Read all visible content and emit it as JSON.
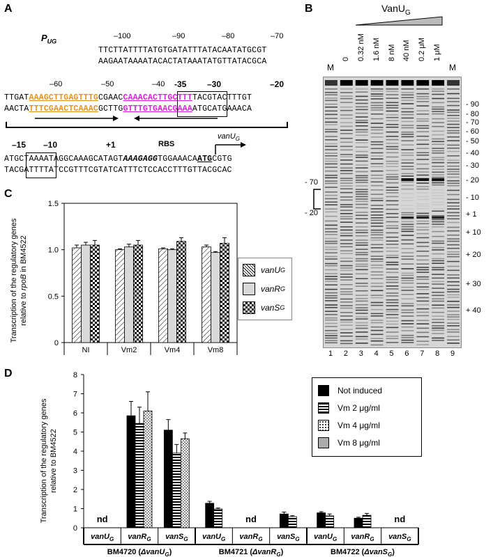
{
  "panelA": {
    "letter": "A",
    "promoter_label": "P",
    "promoter_sub": "UG",
    "nums_row1": [
      "–100",
      "–90",
      "–80",
      "–70"
    ],
    "seq1_top": "TTCTTATTTTATGTGATATTTATACAATATGCGT",
    "seq1_bot": "AAGAATAAAATACACTATAAATATGTTATACGCA",
    "nums_row2": [
      "–60",
      "–50",
      "–40",
      "–20"
    ],
    "nums_row2_bold": [
      "-35",
      "–30"
    ],
    "seq2_top": {
      "a": "TTGAT",
      "b": "AAAGCTTGAGTTTG",
      "c": "CGAAC",
      "d": "CAAACACTTGCTTT",
      "e": "TACGTACTTTGT"
    },
    "seq2_bot": {
      "a": "AACTA",
      "b": "TTTCGAACTCAAAC",
      "c": "GCTTG",
      "d": "GTTTGTGAACGAAA",
      "e": "ATGCATGAAACA"
    },
    "nums_row3_bold": [
      "–15",
      "–10",
      "+1",
      "RBS"
    ],
    "gene_label": "vanU",
    "gene_sub": "G",
    "seq3_top": {
      "a": "ATGCTAAAATAGGCAAAGCATAGT",
      "b": "AAAGAGG",
      "c": "TGGAAACA",
      "d": "ATG",
      "e": "CGTG"
    },
    "seq3_bot": "TACGATTTTATCCGTTTCGTATCATTTCTCCACCTTTGTTACGCAC"
  },
  "panelB": {
    "letter": "B",
    "protein_label": "VanU",
    "protein_sub": "G",
    "lanes_top": [
      "M",
      "0",
      "0.32 nM",
      "1.6 nM",
      "8 nM",
      "40 nM",
      "0.2 μM",
      "1 μM",
      "M"
    ],
    "lanes_bottom": [
      "1",
      "2",
      "3",
      "4",
      "5",
      "6",
      "7",
      "8",
      "9"
    ],
    "right_labels": [
      "- 90",
      "- 80",
      "- 70",
      "- 60",
      "- 50",
      "- 40",
      "- 30",
      "- 20",
      "- 10",
      "+ 1",
      "+ 10",
      "+ 20",
      "+ 30",
      "+ 40"
    ],
    "left_labels": [
      "- 70",
      "- 20"
    ]
  },
  "panelC": {
    "letter": "C",
    "ylabel_line1": "Transcription of the regulatory genes",
    "ylabel_line2_pre": "relative to ",
    "ylabel_line2_italic": "rpoB",
    "ylabel_line2_post": " in BM4522",
    "legend": [
      {
        "name": "vanU",
        "sub": "G"
      },
      {
        "name": "vanR",
        "sub": "G"
      },
      {
        "name": "vanS",
        "sub": "G"
      }
    ]
  },
  "panelD": {
    "letter": "D",
    "ylabel_line1": "Transcription of the regulatory genes",
    "ylabel_line2": "relative to BM4522",
    "legend": [
      "Not induced",
      "Vm 2 μg/ml",
      "Vm 4 μg/ml",
      "Vm 8 μg/ml"
    ],
    "gene_labels": [
      {
        "name": "vanU",
        "sub": "G"
      },
      {
        "name": "vanR",
        "sub": "G"
      },
      {
        "name": "vanS",
        "sub": "G"
      },
      {
        "name": "vanU",
        "sub": "G"
      },
      {
        "name": "vanR",
        "sub": "G"
      },
      {
        "name": "vanS",
        "sub": "G"
      },
      {
        "name": "vanU",
        "sub": "G"
      },
      {
        "name": "vanR",
        "sub": "G"
      },
      {
        "name": "vanS",
        "sub": "G"
      }
    ],
    "strains": [
      {
        "pre": "BM4720 (",
        "del": "ΔvanU",
        "sub": "G",
        "post": ")"
      },
      {
        "pre": "BM4721 (",
        "del": "ΔvanR",
        "sub": "G",
        "post": ")"
      },
      {
        "pre": "BM4722 (",
        "del": "ΔvanS",
        "sub": "G",
        "post": ")"
      }
    ],
    "nd_label": "nd"
  },
  "chart_data": [
    {
      "type": "bar",
      "categories": [
        "NI",
        "Vm2",
        "Vm4",
        "Vm8"
      ],
      "series": [
        {
          "name": "vanUG",
          "values": [
            1.02,
            1.0,
            1.01,
            1.03
          ],
          "errors": [
            0.03,
            0.01,
            0.01,
            0.02
          ]
        },
        {
          "name": "vanRG",
          "values": [
            1.05,
            1.03,
            1.0,
            0.97
          ],
          "errors": [
            0.03,
            0.03,
            0.01,
            0.01
          ]
        },
        {
          "name": "vanSG",
          "values": [
            1.05,
            1.05,
            1.09,
            1.07
          ],
          "errors": [
            0.05,
            0.05,
            0.04,
            0.06
          ]
        }
      ],
      "ylim": [
        0,
        1.5
      ],
      "yticks": [
        "0",
        "0.5",
        "1.0",
        "1.5"
      ],
      "grid": false,
      "legend_position": "right"
    },
    {
      "type": "bar",
      "groups": [
        "vanUG",
        "vanRG",
        "vanSG",
        "vanUG",
        "vanRG",
        "vanSG",
        "vanUG",
        "vanRG",
        "vanSG"
      ],
      "series": [
        {
          "name": "Not induced",
          "values": [
            null,
            5.85,
            5.1,
            1.28,
            null,
            0.72,
            0.78,
            0.5,
            null
          ],
          "errors": [
            0,
            0.75,
            0.55,
            0.1,
            0,
            0.1,
            0.06,
            0.05,
            0
          ]
        },
        {
          "name": "Vm 2 μg/ml",
          "values": [
            null,
            5.45,
            3.9,
            0.98,
            null,
            0.58,
            0.62,
            0.65,
            null
          ],
          "errors": [
            0,
            0.85,
            0.45,
            0.05,
            0,
            0.05,
            0.1,
            0.1,
            0
          ]
        },
        {
          "name": "Vm 4 μg/ml",
          "values": [
            null,
            6.1,
            4.65,
            null,
            null,
            null,
            null,
            null,
            null
          ],
          "errors": [
            0,
            1.0,
            0.3,
            0,
            0,
            0,
            0,
            0,
            0
          ]
        }
      ],
      "nd_positions": [
        0,
        4,
        8
      ],
      "ylim": [
        0,
        8
      ],
      "yticks": [
        "0",
        "1",
        "2",
        "3",
        "4",
        "5",
        "6",
        "7",
        "8"
      ],
      "grid": false,
      "legend_position": "top-right"
    }
  ]
}
